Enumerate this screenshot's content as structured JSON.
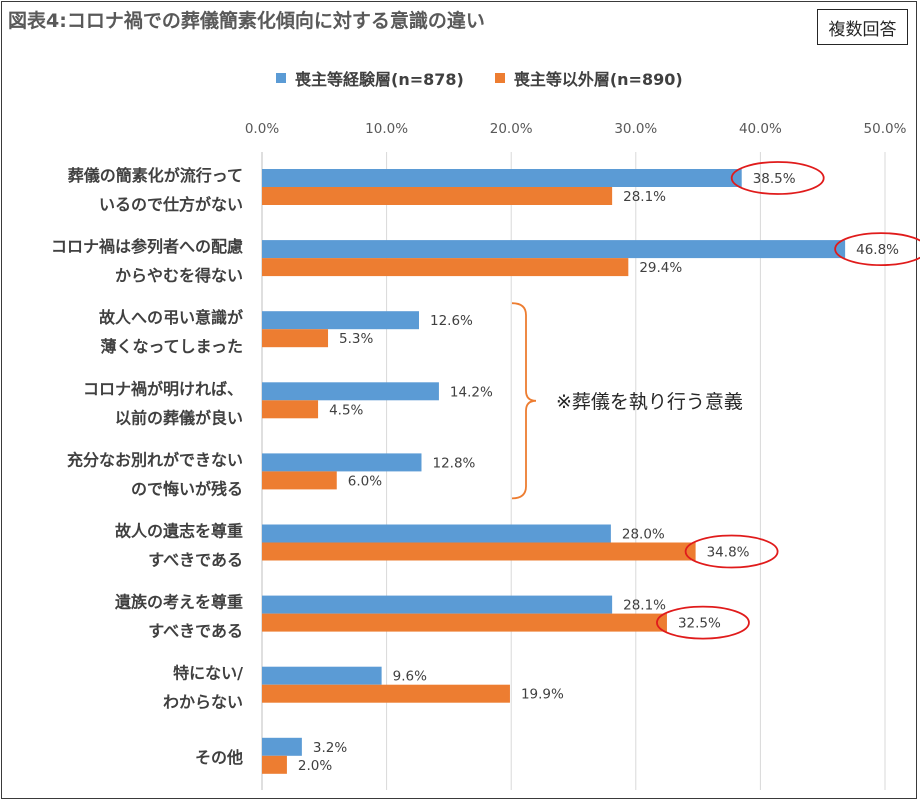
{
  "badge": "複数回答",
  "chart_data": {
    "type": "bar",
    "orientation": "horizontal",
    "title": "図表4:コロナ禍での葬儀簡素化傾向に対する意識の違い",
    "categories": [
      [
        "葬儀の簡素化が流行って",
        "いるので仕方がない"
      ],
      [
        "コロナ禍は参列者への配慮",
        "からやむを得ない"
      ],
      [
        "故人への弔い意識が",
        "薄くなってしまった"
      ],
      [
        "コロナ禍が明ければ、",
        "以前の葬儀が良い"
      ],
      [
        "充分なお別れができない",
        "ので悔いが残る"
      ],
      [
        "故人の遺志を尊重",
        "すべきである"
      ],
      [
        "遺族の考えを尊重",
        "すべきである"
      ],
      [
        "特にない/",
        "わからない"
      ],
      [
        "その他"
      ]
    ],
    "series": [
      {
        "name": "喪主等経験層(n=878)",
        "color": "#5b9bd5",
        "values": [
          38.5,
          46.8,
          12.6,
          14.2,
          12.8,
          28.0,
          28.1,
          9.6,
          3.2
        ],
        "labels": [
          "38.5%",
          "46.8%",
          "12.6%",
          "14.2%",
          "12.8%",
          "28.0%",
          "28.1%",
          "9.6%",
          "3.2%"
        ]
      },
      {
        "name": "喪主等以外層(n=890)",
        "color": "#ed7d31",
        "values": [
          28.1,
          29.4,
          5.3,
          4.5,
          6.0,
          34.8,
          32.5,
          19.9,
          2.0
        ],
        "labels": [
          "28.1%",
          "29.4%",
          "5.3%",
          "4.5%",
          "6.0%",
          "34.8%",
          "32.5%",
          "19.9%",
          "2.0%"
        ]
      }
    ],
    "xlim": [
      0,
      50
    ],
    "ticks": [
      "0.0%",
      "10.0%",
      "20.0%",
      "30.0%",
      "40.0%",
      "50.0%"
    ],
    "axis_position": "top",
    "grid": true,
    "legend_position": "top",
    "highlights": [
      {
        "series": 0,
        "category": 0
      },
      {
        "series": 0,
        "category": 1
      },
      {
        "series": 1,
        "category": 5
      },
      {
        "series": 1,
        "category": 6
      }
    ],
    "highlight_color": "#e01b1b",
    "bracket": {
      "from_category": 2,
      "to_category": 4,
      "text": "※葬儀を執り行う意義",
      "color": "#ed7d31"
    }
  }
}
